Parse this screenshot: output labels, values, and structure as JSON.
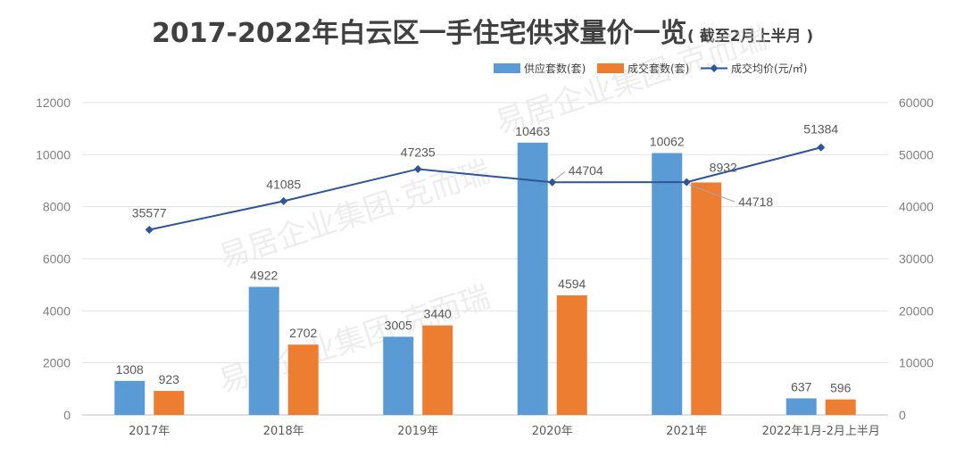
{
  "chart_data": {
    "type": "bar",
    "title": "2017-2022年白云区一手住宅供求量价一览",
    "subtitle": "( 截至2月上半月 )",
    "categories": [
      "2017年",
      "2018年",
      "2019年",
      "2020年",
      "2021年",
      "2022年1月-2月上半月"
    ],
    "series": [
      {
        "name": "供应套数(套)",
        "kind": "bar",
        "axis": "left",
        "color": "#5b9bd5",
        "values": [
          1308,
          4922,
          3005,
          10463,
          10062,
          637
        ]
      },
      {
        "name": "成交套数(套)",
        "kind": "bar",
        "axis": "left",
        "color": "#ed7d31",
        "values": [
          923,
          2702,
          3440,
          4594,
          8932,
          596
        ]
      },
      {
        "name": "成交均价(元/㎡)",
        "kind": "line",
        "axis": "right",
        "color": "#2e5597",
        "values": [
          35577,
          41085,
          47235,
          44704,
          44718,
          51384
        ]
      }
    ],
    "ylim_left": [
      0,
      12000
    ],
    "ylim_right": [
      0,
      60000
    ],
    "yticks_left": [
      0,
      2000,
      4000,
      6000,
      8000,
      10000,
      12000
    ],
    "yticks_right": [
      0,
      10000,
      20000,
      30000,
      40000,
      50000,
      60000
    ],
    "highlight_color": "#c00000",
    "grid": true,
    "legend_position": "top-right"
  },
  "watermark": {
    "text": "易居企业集团·克而瑞"
  }
}
